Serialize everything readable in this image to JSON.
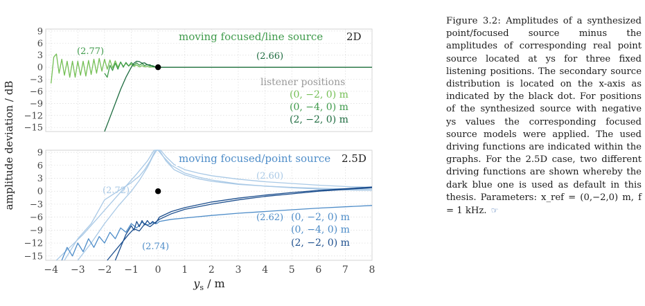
{
  "caption": {
    "label": "Figure 3.2:",
    "text": "Amplitudes of a synthesized point/focused source minus the amplitudes of corresponding real point source located at ys for three fixed listening positions. The secondary source distribution is located on the x-axis as indicated by the black dot. For positions of the synthesized source with negative ys values the corresponding focused source models were applied. The used driving functions are indicated within the graphs. For the 2.5D case, two different driving functions are shown whereby the dark blue one is used as default in this thesis. Parameters: x_ref = (0,−2,0) m, f = 1 kHz.",
    "link_icon": "pointing-hand-icon"
  },
  "colors": {
    "green_light": "#74bf55",
    "green_mid": "#3e9a4a",
    "green_dark": "#1d6b3f",
    "blue_light": "#a9c9e6",
    "blue_mid": "#4d8cc8",
    "blue_dark": "#1d4f8e",
    "legend_gray": "#999999",
    "dot": "#000000"
  },
  "chart_data": [
    {
      "type": "line",
      "title": "moving focused/line source",
      "dim_label": "2D",
      "ylabel": "amplitude deviation / dB",
      "xlim": [
        -4.2,
        8
      ],
      "ylim": [
        -16,
        9.5
      ],
      "yticks": [
        9,
        6,
        3,
        0,
        -3,
        -6,
        -9,
        -12,
        -15
      ],
      "ytick_labels": [
        "9",
        "6",
        "3",
        "0",
        "−3",
        "−6",
        "−9",
        "−12",
        "−15"
      ],
      "grid": true,
      "annotations": [
        {
          "text": "(2.77)",
          "x": -3.1,
          "y": 3.5
        },
        {
          "text": "(2.66)",
          "x": 4.0,
          "y": 2.3
        }
      ],
      "legend": {
        "title": "listener positions",
        "placement": "right",
        "entries": [
          "(0, −2, 0) m",
          "(0, −4, 0) m",
          "(2, −2, 0) m"
        ]
      },
      "secondary_source_marker": {
        "x": 0,
        "y": 0
      },
      "series": [
        {
          "name": "(0, −2, 0) m",
          "color_key": "green_light",
          "x": [
            -4.0,
            -3.9,
            -3.8,
            -3.7,
            -3.6,
            -3.5,
            -3.4,
            -3.3,
            -3.2,
            -3.1,
            -3.0,
            -2.9,
            -2.8,
            -2.7,
            -2.6,
            -2.5,
            -2.4,
            -2.3,
            -2.2,
            -2.1,
            -2.0,
            -1.9,
            -1.8,
            -1.7,
            -1.6,
            -1.5,
            -1.4,
            -1.3,
            -1.2,
            -1.1,
            -1.0,
            -0.9,
            -0.8,
            -0.7,
            -0.6,
            -0.5,
            -0.4,
            -0.3,
            -0.2,
            -0.1,
            0.0,
            8.0
          ],
          "y": [
            -4.0,
            2.5,
            3.3,
            -1.5,
            2.0,
            -2.0,
            1.5,
            -2.5,
            1.5,
            -2.5,
            1.5,
            -2.0,
            1.5,
            -2.2,
            1.7,
            -1.8,
            2.0,
            -1.5,
            2.2,
            -1.0,
            2.0,
            -0.5,
            1.8,
            -0.2,
            1.6,
            0.0,
            1.3,
            0.2,
            1.0,
            0.3,
            0.8,
            0.2,
            0.6,
            0.1,
            0.4,
            0.1,
            0.2,
            0.0,
            0.1,
            0.0,
            0.0,
            0.0
          ]
        },
        {
          "name": "(0, −4, 0) m",
          "color_key": "green_mid",
          "x": [
            -2.0,
            -1.9,
            -1.8,
            -1.7,
            -1.6,
            -1.5,
            -1.4,
            -1.3,
            -1.2,
            -1.1,
            -1.0,
            -0.9,
            -0.8,
            -0.7,
            -0.6,
            -0.5,
            -0.4,
            -0.3,
            -0.2,
            -0.1,
            0.0,
            8.0
          ],
          "y": [
            -1.5,
            -2.5,
            0.5,
            -0.8,
            1.0,
            -0.5,
            1.3,
            0.0,
            1.2,
            0.3,
            1.2,
            0.5,
            1.1,
            0.5,
            0.9,
            0.4,
            0.7,
            0.3,
            0.4,
            0.1,
            0.0,
            0.0
          ]
        },
        {
          "name": "(2, −2, 0) m",
          "color_key": "green_dark",
          "x": [
            -2.0,
            -1.8,
            -1.6,
            -1.4,
            -1.2,
            -1.0,
            -0.9,
            -0.8,
            -0.7,
            -0.6,
            -0.5,
            -0.4,
            -0.3,
            -0.2,
            -0.1,
            0.0,
            8.0
          ],
          "y": [
            -16.0,
            -12.5,
            -9.0,
            -5.5,
            -2.5,
            0.0,
            1.0,
            1.5,
            1.4,
            1.0,
            1.1,
            0.6,
            0.6,
            0.2,
            0.1,
            0.0,
            0.0
          ]
        }
      ]
    },
    {
      "type": "line",
      "title": "moving focused/point source",
      "dim_label": "2.5D",
      "ylabel": "amplitude deviation / dB",
      "xlabel": "ys / m",
      "xlim": [
        -4.2,
        8
      ],
      "ylim": [
        -16,
        9.5
      ],
      "xticks": [
        -4,
        -3,
        -2,
        -1,
        0,
        1,
        2,
        3,
        4,
        5,
        6,
        7,
        8
      ],
      "xtick_labels": [
        "−4",
        "−3",
        "−2",
        "−1",
        "0",
        "1",
        "2",
        "3",
        "4",
        "5",
        "6",
        "7",
        "8"
      ],
      "yticks": [
        9,
        6,
        3,
        0,
        -3,
        -6,
        -9,
        -12,
        -15
      ],
      "ytick_labels": [
        "9",
        "6",
        "3",
        "0",
        "−3",
        "−6",
        "−9",
        "−12",
        "−15"
      ],
      "grid": true,
      "annotations": [
        {
          "text": "(2.60)",
          "x": 4.0,
          "y": 3.0
        },
        {
          "text": "(2.72)",
          "x": -2.9,
          "y": 0.2
        },
        {
          "text": "(2.62)",
          "x": 4.0,
          "y": -7.5
        },
        {
          "text": "(2.74)",
          "x": -0.3,
          "y": -13.0
        }
      ],
      "legend": {
        "placement": "bottom-right",
        "entries": [
          "(0, −2, 0) m",
          "(0, −4, 0) m",
          "(2, −2, 0) m"
        ]
      },
      "secondary_source_marker": {
        "x": 0,
        "y": 0
      },
      "series": [
        {
          "name": "(0, −2, 0) m",
          "driving_function": "(2.60)/(2.72)",
          "color_key": "blue_light",
          "x": [
            -3.5,
            -3.0,
            -2.5,
            -2.0,
            -1.5,
            -1.0,
            -0.7,
            -0.5,
            -0.3,
            -0.1,
            0.05,
            0.3,
            0.6,
            1.0,
            1.5,
            2.0,
            3.0,
            4.0,
            5.0,
            6.0,
            7.0,
            8.0
          ],
          "y": [
            -16.0,
            -11.0,
            -7.5,
            -2.0,
            0.0,
            2.0,
            3.5,
            5.0,
            7.0,
            9.5,
            9.5,
            7.0,
            5.0,
            3.8,
            2.9,
            2.3,
            1.6,
            1.2,
            0.9,
            0.7,
            0.55,
            0.45
          ]
        },
        {
          "name": "(0, −4, 0) m",
          "driving_function": "(2.60)/(2.72)",
          "color_key": "blue_light",
          "x": [
            -3.0,
            -2.5,
            -2.0,
            -1.5,
            -1.0,
            -0.7,
            -0.4,
            -0.2,
            -0.05,
            0.1,
            0.3,
            0.6,
            1.0,
            1.5,
            2.0,
            3.0,
            4.0,
            5.0,
            6.0,
            7.0,
            8.0
          ],
          "y": [
            -16.0,
            -12.0,
            -7.5,
            -3.5,
            0.0,
            2.5,
            5.5,
            8.0,
            9.5,
            9.5,
            8.0,
            6.2,
            5.0,
            4.2,
            3.6,
            2.8,
            2.2,
            1.8,
            1.4,
            1.1,
            0.9
          ]
        },
        {
          "name": "(2, −2, 0) m",
          "driving_function": "(2.60)/(2.72)",
          "color_key": "blue_light",
          "x": [
            -3.8,
            -3.3,
            -2.8,
            -2.3,
            -1.8,
            -1.3,
            -0.8,
            -0.4,
            -0.15,
            0.0,
            0.2,
            0.5,
            1.0,
            1.5,
            2.0,
            3.0,
            4.0,
            5.0,
            6.0,
            7.0,
            8.0
          ],
          "y": [
            -16.0,
            -13.0,
            -10.0,
            -6.5,
            -3.0,
            0.5,
            4.0,
            7.0,
            9.5,
            9.5,
            8.0,
            6.0,
            4.2,
            3.3,
            2.6,
            1.7,
            1.2,
            0.8,
            0.5,
            0.3,
            0.2
          ]
        },
        {
          "name": "(0, −2, 0) m",
          "driving_function": "(2.62)/(2.74)",
          "color_key": "blue_mid",
          "x": [
            -3.6,
            -3.4,
            -3.2,
            -3.0,
            -2.8,
            -2.6,
            -2.4,
            -2.2,
            -2.0,
            -1.8,
            -1.6,
            -1.4,
            -1.2,
            -1.0,
            -0.8,
            -0.6,
            -0.4,
            -0.2,
            -0.05,
            0.05,
            0.5,
            1.0,
            2.0,
            3.0,
            4.0,
            5.0,
            6.0,
            7.0,
            8.0
          ],
          "y": [
            -16.0,
            -13.0,
            -15.0,
            -12.0,
            -14.0,
            -11.0,
            -13.0,
            -10.5,
            -12.0,
            -9.5,
            -11.0,
            -8.5,
            -9.5,
            -7.5,
            -8.5,
            -7.2,
            -7.8,
            -7.3,
            -7.5,
            -7.0,
            -6.5,
            -6.2,
            -5.6,
            -5.1,
            -4.7,
            -4.3,
            -3.9,
            -3.6,
            -3.3
          ]
        },
        {
          "name": "(0, −4, 0) m",
          "driving_function": "(2.62)/(2.74)",
          "color_key": "blue_dark",
          "x": [
            -1.6,
            -1.4,
            -1.2,
            -1.0,
            -0.9,
            -0.8,
            -0.7,
            -0.6,
            -0.5,
            -0.4,
            -0.3,
            -0.2,
            -0.1,
            0.05,
            0.5,
            1.0,
            2.0,
            3.0,
            4.0,
            5.0,
            6.0,
            7.0,
            8.0
          ],
          "y": [
            -16.0,
            -13.0,
            -10.0,
            -8.0,
            -9.0,
            -7.0,
            -8.2,
            -6.8,
            -7.8,
            -6.8,
            -7.6,
            -7.0,
            -7.5,
            -6.0,
            -4.7,
            -3.8,
            -2.5,
            -1.6,
            -0.9,
            -0.3,
            0.2,
            0.6,
            1.0
          ]
        },
        {
          "name": "(2, −2, 0) m",
          "driving_function": "(2.62)/(2.74)",
          "color_key": "blue_dark",
          "x": [
            -1.9,
            -1.7,
            -1.5,
            -1.3,
            -1.1,
            -0.9,
            -0.7,
            -0.5,
            -0.3,
            -0.1,
            0.05,
            0.5,
            1.0,
            2.0,
            3.0,
            4.0,
            5.0,
            6.0,
            7.0,
            8.0
          ],
          "y": [
            -16.0,
            -14.5,
            -13.0,
            -11.5,
            -10.0,
            -8.7,
            -9.2,
            -7.6,
            -8.2,
            -7.2,
            -6.5,
            -5.2,
            -4.2,
            -3.0,
            -2.0,
            -1.2,
            -0.6,
            0.0,
            0.4,
            0.8
          ]
        }
      ]
    }
  ]
}
